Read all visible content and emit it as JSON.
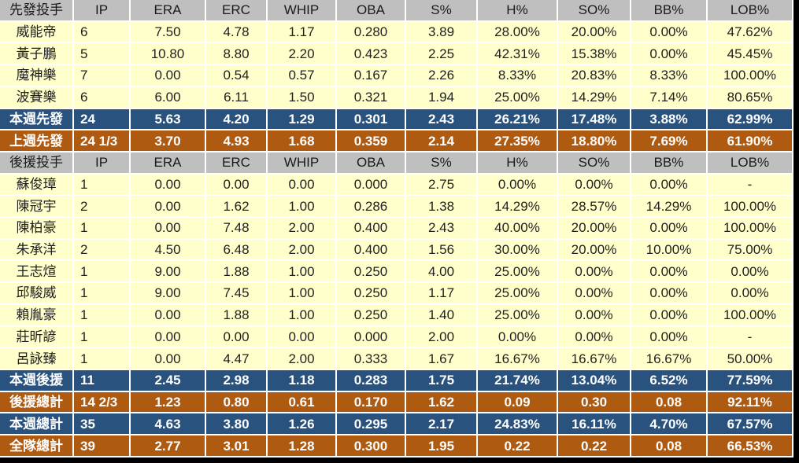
{
  "colors": {
    "header_bg": "#BFBFBF",
    "player_bg": "#FFFFCC",
    "week_bg": "#29527E",
    "total_bg": "#AF5A11",
    "grid": "#FFFFFF",
    "edge": "#000000"
  },
  "table": {
    "columns": [
      "IP",
      "ERA",
      "ERC",
      "WHIP",
      "OBA",
      "S%",
      "H%",
      "SO%",
      "BB%",
      "LOB%"
    ],
    "section_headers": {
      "starters": "先發投手",
      "relievers": "後援投手"
    },
    "rows": [
      {
        "type": "header",
        "label": "先發投手"
      },
      {
        "type": "player",
        "label": "威能帝",
        "values": [
          "6",
          "7.50",
          "4.78",
          "1.17",
          "0.280",
          "3.89",
          "28.00%",
          "20.00%",
          "0.00%",
          "47.62%"
        ]
      },
      {
        "type": "player",
        "label": "黃子鵬",
        "values": [
          "5",
          "10.80",
          "8.80",
          "2.20",
          "0.423",
          "2.25",
          "42.31%",
          "15.38%",
          "0.00%",
          "45.45%"
        ]
      },
      {
        "type": "player",
        "label": "魔神樂",
        "values": [
          "7",
          "0.00",
          "0.54",
          "0.57",
          "0.167",
          "2.26",
          "8.33%",
          "20.83%",
          "8.33%",
          "100.00%"
        ]
      },
      {
        "type": "player",
        "label": "波賽樂",
        "values": [
          "6",
          "6.00",
          "6.11",
          "1.50",
          "0.321",
          "1.94",
          "25.00%",
          "14.29%",
          "7.14%",
          "80.65%"
        ]
      },
      {
        "type": "week",
        "label": "本週先發",
        "values": [
          "24",
          "5.63",
          "4.20",
          "1.29",
          "0.301",
          "2.43",
          "26.21%",
          "17.48%",
          "3.88%",
          "62.99%"
        ]
      },
      {
        "type": "total",
        "label": "上週先發",
        "values": [
          "24 1/3",
          "3.70",
          "4.93",
          "1.68",
          "0.359",
          "2.14",
          "27.35%",
          "18.80%",
          "7.69%",
          "61.90%"
        ]
      },
      {
        "type": "header",
        "label": "後援投手"
      },
      {
        "type": "player",
        "label": "蘇俊璋",
        "values": [
          "1",
          "0.00",
          "0.00",
          "0.00",
          "0.000",
          "2.75",
          "0.00%",
          "0.00%",
          "0.00%",
          "-"
        ]
      },
      {
        "type": "player",
        "label": "陳冠宇",
        "values": [
          "2",
          "0.00",
          "1.62",
          "1.00",
          "0.286",
          "1.38",
          "14.29%",
          "28.57%",
          "14.29%",
          "100.00%"
        ]
      },
      {
        "type": "player",
        "label": "陳柏豪",
        "values": [
          "1",
          "0.00",
          "7.48",
          "2.00",
          "0.400",
          "2.43",
          "40.00%",
          "20.00%",
          "0.00%",
          "100.00%"
        ]
      },
      {
        "type": "player",
        "label": "朱承洋",
        "values": [
          "2",
          "4.50",
          "6.48",
          "2.00",
          "0.400",
          "1.56",
          "30.00%",
          "20.00%",
          "10.00%",
          "75.00%"
        ]
      },
      {
        "type": "player",
        "label": "王志煊",
        "values": [
          "1",
          "9.00",
          "1.88",
          "1.00",
          "0.250",
          "4.00",
          "25.00%",
          "0.00%",
          "0.00%",
          "0.00%"
        ]
      },
      {
        "type": "player",
        "label": "邱駿威",
        "values": [
          "1",
          "9.00",
          "7.45",
          "1.00",
          "0.250",
          "1.17",
          "25.00%",
          "0.00%",
          "0.00%",
          "0.00%"
        ]
      },
      {
        "type": "player",
        "label": "賴胤豪",
        "values": [
          "1",
          "0.00",
          "1.88",
          "1.00",
          "0.250",
          "1.40",
          "25.00%",
          "0.00%",
          "0.00%",
          "100.00%"
        ]
      },
      {
        "type": "player",
        "label": "莊昕諺",
        "values": [
          "1",
          "0.00",
          "0.00",
          "0.00",
          "0.000",
          "2.00",
          "0.00%",
          "0.00%",
          "0.00%",
          "-"
        ]
      },
      {
        "type": "player",
        "label": "呂詠臻",
        "values": [
          "1",
          "0.00",
          "4.47",
          "2.00",
          "0.333",
          "1.67",
          "16.67%",
          "16.67%",
          "16.67%",
          "50.00%"
        ]
      },
      {
        "type": "week",
        "label": "本週後援",
        "values": [
          "11",
          "2.45",
          "2.98",
          "1.18",
          "0.283",
          "1.75",
          "21.74%",
          "13.04%",
          "6.52%",
          "77.59%"
        ]
      },
      {
        "type": "total",
        "label": "後援總計",
        "values": [
          "14 2/3",
          "1.23",
          "0.80",
          "0.61",
          "0.170",
          "1.62",
          "0.09",
          "0.30",
          "0.08",
          "92.11%"
        ]
      },
      {
        "type": "week",
        "label": "本週總計",
        "values": [
          "35",
          "4.63",
          "3.80",
          "1.26",
          "0.295",
          "2.17",
          "24.83%",
          "16.11%",
          "4.70%",
          "67.57%"
        ]
      },
      {
        "type": "total",
        "label": "全隊總計",
        "values": [
          "39",
          "2.77",
          "3.01",
          "1.28",
          "0.300",
          "1.95",
          "0.22",
          "0.22",
          "0.08",
          "66.53%"
        ]
      }
    ]
  }
}
